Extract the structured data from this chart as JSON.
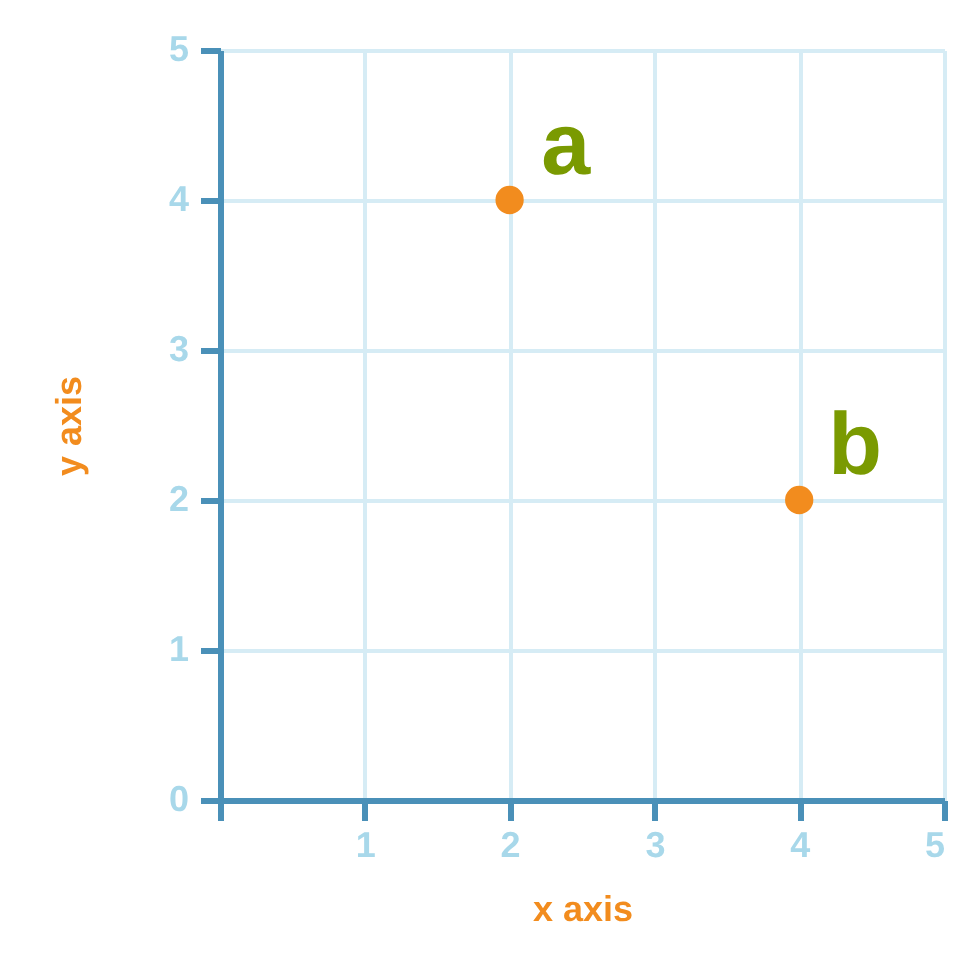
{
  "chart_data": {
    "type": "scatter",
    "xlabel": "x axis",
    "ylabel": "y axis",
    "x": [
      2,
      4
    ],
    "series": [
      {
        "color": "#f28c1e",
        "values": [
          4,
          2
        ]
      }
    ],
    "xlim": [
      0,
      5
    ],
    "ylim": [
      0,
      5
    ],
    "xticks": [
      {
        "value": 0,
        "label": null
      },
      1,
      2,
      3,
      4,
      5
    ],
    "yticks": [
      0,
      1,
      2,
      3,
      4,
      5
    ],
    "grid": true,
    "marker": "circle",
    "annotations": [
      {
        "text": "a",
        "x": 2,
        "y": 4
      },
      {
        "text": "b",
        "x": 4,
        "y": 2
      }
    ]
  }
}
